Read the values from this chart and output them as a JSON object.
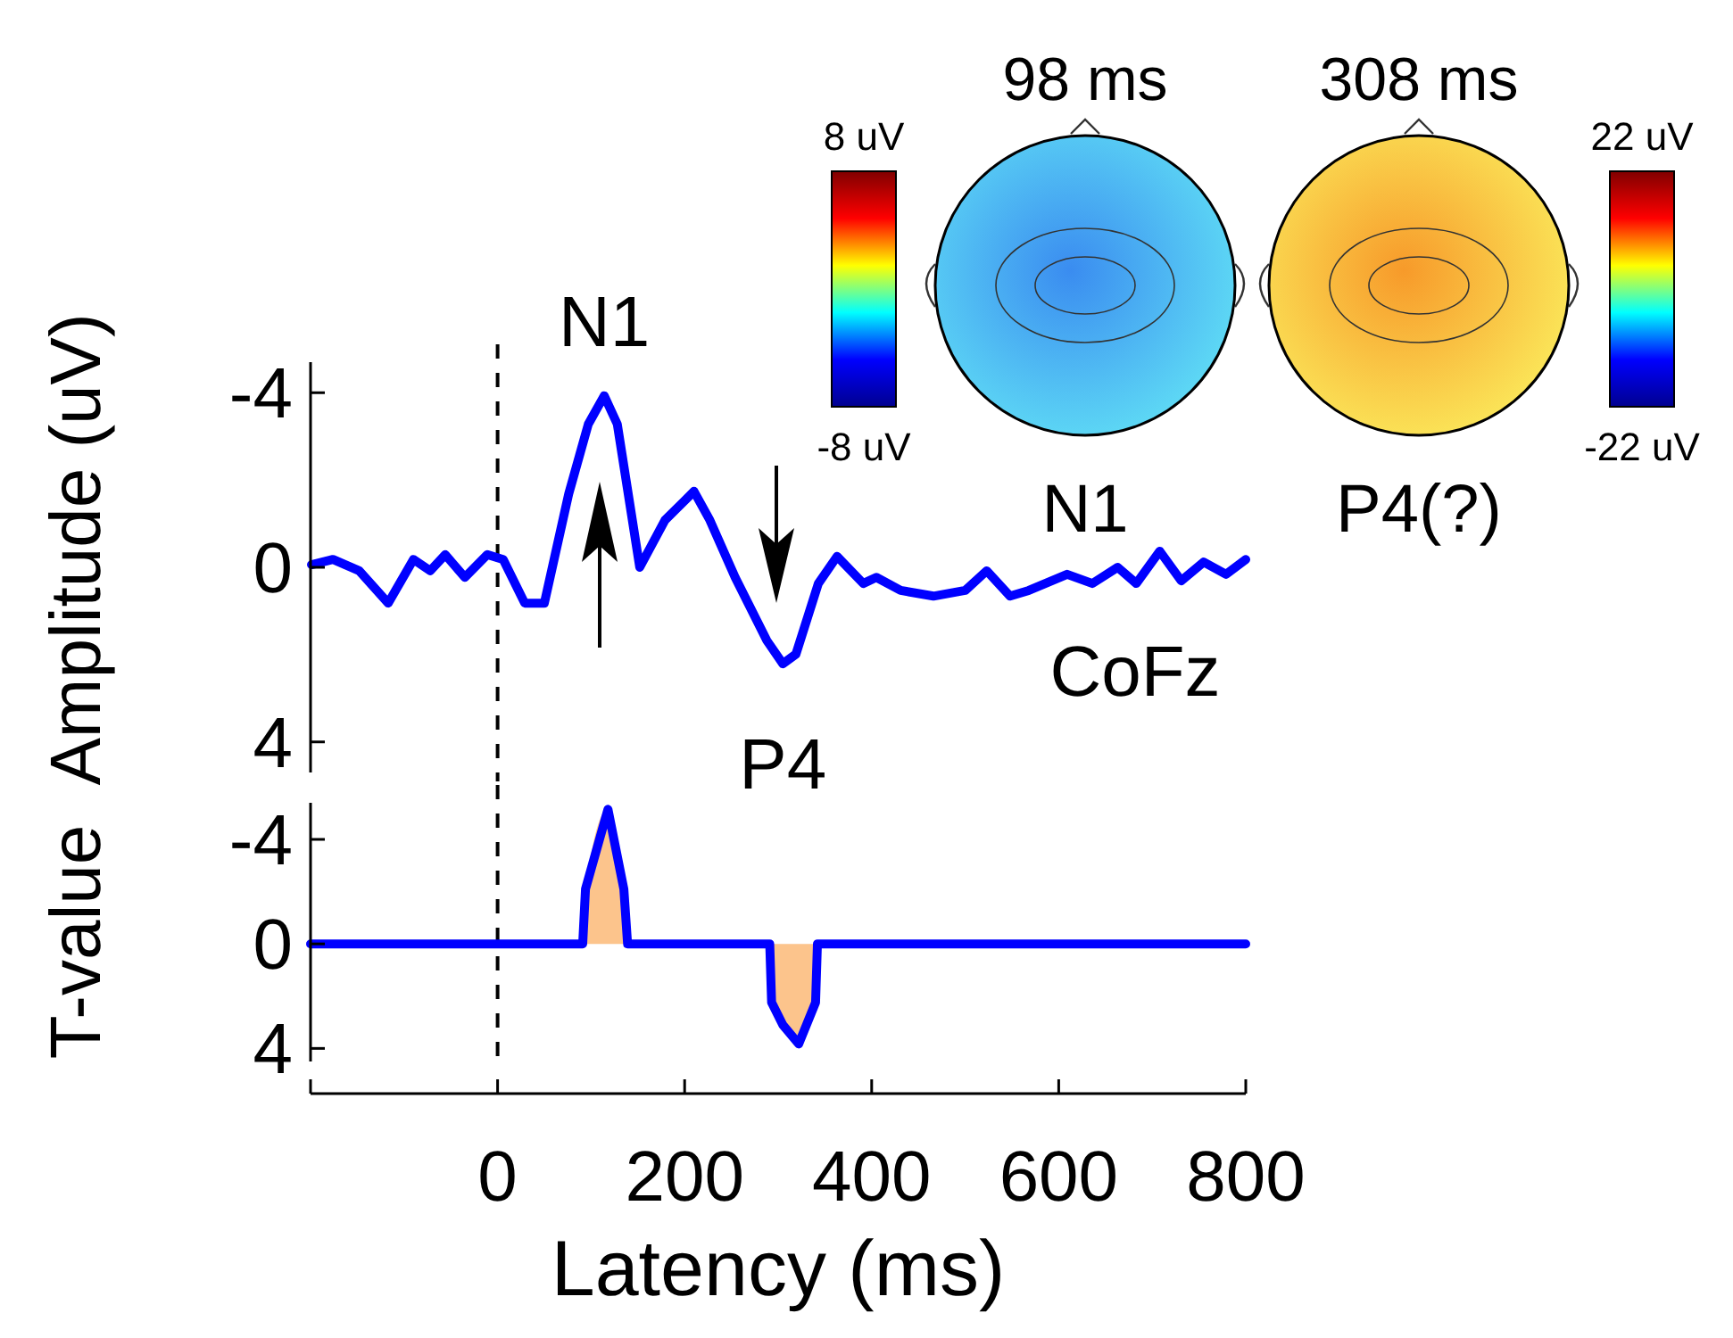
{
  "chart_data": [
    {
      "type": "line",
      "ylabel": "Amplitude (uV)",
      "xlim": [
        -200,
        800
      ],
      "ylim": [
        4.7,
        -4.7
      ],
      "yticks": [
        -4,
        0,
        4
      ],
      "tick_labels": "y",
      "x": [
        -199,
        -176,
        -148,
        -117,
        -90,
        -72,
        -56,
        -35,
        -11,
        6,
        29,
        50,
        76,
        97,
        114,
        128,
        152,
        179,
        210,
        227,
        254,
        288,
        305,
        319,
        343,
        363,
        391,
        405,
        431,
        466,
        500,
        523,
        548,
        568,
        609,
        636,
        663,
        683,
        708,
        731,
        755,
        779,
        800
      ],
      "series": [
        {
          "type": "line",
          "color": "#0000ff",
          "values": [
            -0.06,
            -0.18,
            0.08,
            0.82,
            -0.18,
            0.08,
            -0.29,
            0.23,
            -0.29,
            -0.18,
            0.82,
            0.82,
            -1.68,
            -3.28,
            -3.93,
            -3.28,
            0,
            -1.08,
            -1.74,
            -1.08,
            0.23,
            1.68,
            2.21,
            1.99,
            0.37,
            -0.25,
            0.37,
            0.23,
            0.53,
            0.66,
            0.53,
            0.08,
            0.66,
            0.53,
            0.16,
            0.37,
            0,
            0.37,
            -0.37,
            0.31,
            -0.12,
            0.16,
            -0.18
          ]
        }
      ],
      "ref_lines": [
        {
          "axis": "x",
          "value": 0,
          "color": "#000000",
          "line_style": "dashed"
        }
      ],
      "annotations": [
        {
          "text": "N1",
          "x": 114,
          "y": -3.93
        },
        {
          "text": "P4",
          "x": 305,
          "y": 2.21
        },
        "CoFz",
        "98 ms",
        "N1",
        "308 ms",
        "P4(?)",
        "8 uV",
        "-8 uV",
        "22 uV",
        "-22 uV"
      ]
    },
    {
      "type": "line",
      "ylabel": "T-value",
      "xlabel": "Latency (ms)",
      "xlim": [
        -200,
        800
      ],
      "xticks": [
        {
          "value": -200,
          "label": null
        },
        0,
        200,
        400,
        600,
        800
      ],
      "ylim": [
        4.5,
        -5.4
      ],
      "yticks": [
        -4,
        0,
        4
      ],
      "x": [
        -200,
        91,
        94,
        118,
        135,
        139,
        291,
        293,
        305,
        322,
        340,
        342,
        800
      ],
      "series": [
        {
          "type": "area",
          "color": "#fcc48c",
          "values": [
            null,
            0,
            -2.1,
            -5.15,
            -2.1,
            0,
            0,
            2.24,
            3.1,
            3.83,
            2.24,
            0,
            null
          ]
        },
        {
          "type": "line",
          "color": "#0000ff",
          "values": [
            0,
            0,
            -2.1,
            -5.15,
            -2.1,
            0,
            0,
            2.24,
            3.1,
            3.83,
            2.24,
            0,
            0
          ]
        }
      ],
      "ref_lines": [
        {
          "axis": "x",
          "value": 0,
          "color": "#000000",
          "line_style": "dashed"
        }
      ]
    }
  ]
}
